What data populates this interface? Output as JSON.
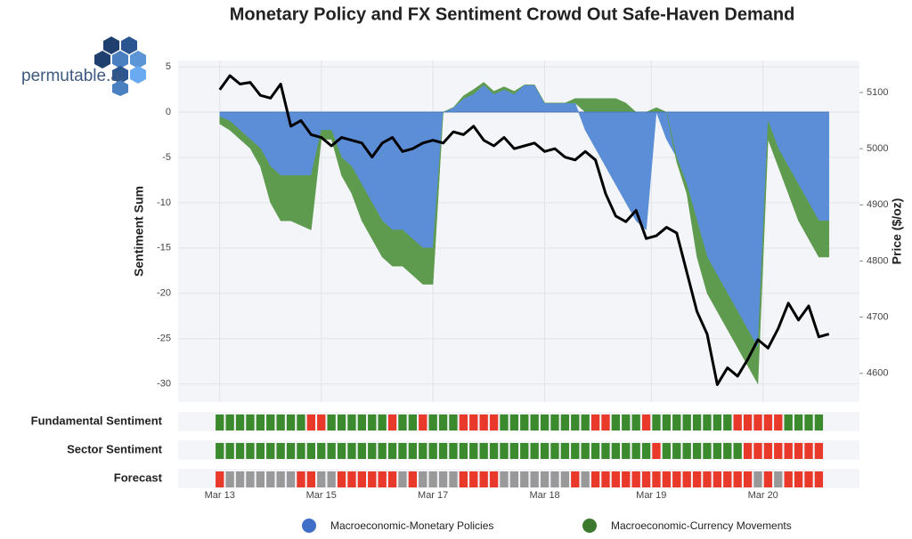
{
  "logo": "permutable.ai",
  "chart_data": {
    "type": "area",
    "title": "Monetary Policy and FX Sentiment Crowd Out Safe-Haven Demand",
    "ylabel": "Sentiment Sum",
    "y2label": "Price ($/oz)",
    "x": [
      0,
      2,
      4,
      6,
      8,
      10,
      12,
      14,
      16,
      18,
      20,
      22,
      24,
      26,
      28,
      30,
      32,
      34,
      36,
      38,
      40,
      42,
      44,
      46,
      48,
      50,
      52,
      54,
      56,
      58,
      60,
      62,
      64,
      66,
      68,
      70,
      72,
      74,
      76,
      78,
      80,
      82,
      84,
      86,
      88,
      90,
      92,
      94,
      96,
      98,
      100,
      102,
      104,
      106,
      108,
      110,
      112,
      114,
      116,
      118,
      120
    ],
    "xlim": [
      -8.2,
      126
    ],
    "xticks": [
      {
        "value": 0,
        "label": "Mar 13"
      },
      {
        "value": 20,
        "label": "Mar 15"
      },
      {
        "value": 42,
        "label": "Mar 17"
      },
      {
        "value": 64,
        "label": "Mar 18"
      },
      {
        "value": 85,
        "label": "Mar 19"
      },
      {
        "value": 107,
        "label": "Mar 20"
      }
    ],
    "ylim": [
      -32,
      5.7
    ],
    "yticks": [
      -30,
      -25,
      -20,
      -15,
      -10,
      -5,
      0,
      5
    ],
    "y2lim": [
      4549,
      5157
    ],
    "y2ticks": [
      4600,
      4700,
      4800,
      4900,
      5000,
      5100
    ],
    "grid": true,
    "series": [
      {
        "name": "Macroeconomic-Monetary Policies",
        "color": "#5b8ed6",
        "values": [
          -0.5,
          -1,
          -2,
          -3,
          -4,
          -6,
          -7,
          -7,
          -7,
          -7,
          -2,
          -2,
          -5,
          -6,
          -8,
          -10,
          -12,
          -13,
          -13,
          -14,
          -15,
          -15,
          0,
          0.5,
          1.5,
          2,
          3,
          2,
          2.5,
          2,
          3,
          3,
          1,
          1,
          1,
          1,
          -2,
          -4,
          -6,
          -8,
          -10,
          -12,
          -13,
          0,
          -3,
          -5,
          -8,
          -12,
          -16,
          -18,
          -20,
          -22,
          -24,
          -26,
          -1,
          -4,
          -6,
          -8,
          -10,
          -12,
          -12
        ]
      },
      {
        "name": "Macroeconomic-Currency Movements",
        "color": "#5e9b4f",
        "values": [
          -0.8,
          -1,
          -1,
          -1,
          -2,
          -4,
          -5,
          -5,
          -5.5,
          -6,
          -1,
          -1,
          -2,
          -3,
          -4,
          -4,
          -4,
          -4,
          -4,
          -4,
          -4,
          -4,
          0,
          0,
          0.3,
          0.5,
          0.3,
          0.3,
          0.3,
          0.3,
          0,
          0,
          0,
          0,
          0,
          0.5,
          1.5,
          1.5,
          1.5,
          1.5,
          1,
          0,
          0,
          0.5,
          0,
          -0.5,
          -1,
          -4,
          -4,
          -4,
          -4,
          -4,
          -4,
          -4,
          -2,
          -2,
          -3,
          -4,
          -4,
          -4,
          -4
        ]
      }
    ],
    "price": {
      "color": "#000000",
      "axis": "y2",
      "values": [
        5105,
        5130,
        5115,
        5118,
        5095,
        5090,
        5115,
        5040,
        5050,
        5025,
        5020,
        5005,
        5020,
        5015,
        5010,
        4985,
        5010,
        5020,
        4995,
        5000,
        5010,
        5015,
        5010,
        5030,
        5025,
        5040,
        5015,
        5005,
        5020,
        5000,
        5005,
        5010,
        4995,
        5000,
        4985,
        4980,
        4995,
        4980,
        4920,
        4880,
        4870,
        4890,
        4840,
        4845,
        4860,
        4850,
        4780,
        4710,
        4670,
        4580,
        4610,
        4595,
        4625,
        4660,
        4645,
        4680,
        4725,
        4695,
        4720,
        4665,
        4670
      ]
    },
    "strips": {
      "x": [
        0,
        2,
        4,
        6,
        8,
        10,
        12,
        14,
        16,
        18,
        20,
        22,
        24,
        26,
        28,
        30,
        32,
        34,
        36,
        38,
        40,
        42,
        44,
        46,
        48,
        50,
        52,
        54,
        56,
        58,
        60,
        62,
        64,
        66,
        68,
        70,
        72,
        74,
        76,
        78,
        80,
        82,
        84,
        86,
        88,
        90,
        92,
        94,
        96,
        98,
        100,
        102,
        104,
        106,
        108,
        110,
        112,
        114,
        116,
        118
      ],
      "rows": [
        {
          "name": "Fundamental Sentiment",
          "colors": [
            "#3b8a2e",
            "#3b8a2e",
            "#3b8a2e",
            "#3b8a2e",
            "#3b8a2e",
            "#3b8a2e",
            "#3b8a2e",
            "#3b8a2e",
            "#3b8a2e",
            "#e8392b",
            "#e8392b",
            "#3b8a2e",
            "#3b8a2e",
            "#3b8a2e",
            "#3b8a2e",
            "#3b8a2e",
            "#3b8a2e",
            "#e8392b",
            "#3b8a2e",
            "#3b8a2e",
            "#e8392b",
            "#3b8a2e",
            "#3b8a2e",
            "#3b8a2e",
            "#e8392b",
            "#e8392b",
            "#e8392b",
            "#e8392b",
            "#3b8a2e",
            "#3b8a2e",
            "#3b8a2e",
            "#3b8a2e",
            "#3b8a2e",
            "#3b8a2e",
            "#3b8a2e",
            "#3b8a2e",
            "#3b8a2e",
            "#e8392b",
            "#e8392b",
            "#3b8a2e",
            "#3b8a2e",
            "#3b8a2e",
            "#e8392b",
            "#3b8a2e",
            "#3b8a2e",
            "#3b8a2e",
            "#3b8a2e",
            "#3b8a2e",
            "#3b8a2e",
            "#3b8a2e",
            "#3b8a2e",
            "#e8392b",
            "#e8392b",
            "#e8392b",
            "#e8392b",
            "#e8392b",
            "#3b8a2e",
            "#3b8a2e",
            "#3b8a2e",
            "#3b8a2e"
          ]
        },
        {
          "name": "Sector Sentiment",
          "colors": [
            "#3b8a2e",
            "#3b8a2e",
            "#3b8a2e",
            "#3b8a2e",
            "#3b8a2e",
            "#3b8a2e",
            "#3b8a2e",
            "#3b8a2e",
            "#3b8a2e",
            "#3b8a2e",
            "#3b8a2e",
            "#3b8a2e",
            "#3b8a2e",
            "#3b8a2e",
            "#3b8a2e",
            "#3b8a2e",
            "#3b8a2e",
            "#3b8a2e",
            "#3b8a2e",
            "#3b8a2e",
            "#3b8a2e",
            "#3b8a2e",
            "#3b8a2e",
            "#3b8a2e",
            "#3b8a2e",
            "#3b8a2e",
            "#3b8a2e",
            "#3b8a2e",
            "#3b8a2e",
            "#3b8a2e",
            "#3b8a2e",
            "#3b8a2e",
            "#3b8a2e",
            "#3b8a2e",
            "#3b8a2e",
            "#3b8a2e",
            "#3b8a2e",
            "#3b8a2e",
            "#3b8a2e",
            "#3b8a2e",
            "#3b8a2e",
            "#3b8a2e",
            "#3b8a2e",
            "#e8392b",
            "#3b8a2e",
            "#3b8a2e",
            "#3b8a2e",
            "#3b8a2e",
            "#3b8a2e",
            "#3b8a2e",
            "#3b8a2e",
            "#3b8a2e",
            "#e8392b",
            "#e8392b",
            "#e8392b",
            "#e8392b",
            "#e8392b",
            "#e8392b",
            "#e8392b",
            "#e8392b"
          ]
        },
        {
          "name": "Forecast",
          "colors": [
            "#e8392b",
            "#999999",
            "#999999",
            "#999999",
            "#999999",
            "#999999",
            "#999999",
            "#999999",
            "#e8392b",
            "#e8392b",
            "#999999",
            "#999999",
            "#e8392b",
            "#e8392b",
            "#e8392b",
            "#e8392b",
            "#e8392b",
            "#e8392b",
            "#999999",
            "#e8392b",
            "#999999",
            "#999999",
            "#999999",
            "#999999",
            "#e8392b",
            "#e8392b",
            "#e8392b",
            "#e8392b",
            "#999999",
            "#999999",
            "#999999",
            "#999999",
            "#999999",
            "#999999",
            "#999999",
            "#e8392b",
            "#999999",
            "#e8392b",
            "#e8392b",
            "#e8392b",
            "#e8392b",
            "#e8392b",
            "#e8392b",
            "#e8392b",
            "#e8392b",
            "#e8392b",
            "#e8392b",
            "#e8392b",
            "#e8392b",
            "#e8392b",
            "#e8392b",
            "#e8392b",
            "#e8392b",
            "#999999",
            "#e8392b",
            "#999999",
            "#e8392b",
            "#e8392b",
            "#e8392b",
            "#e8392b"
          ]
        }
      ]
    }
  }
}
